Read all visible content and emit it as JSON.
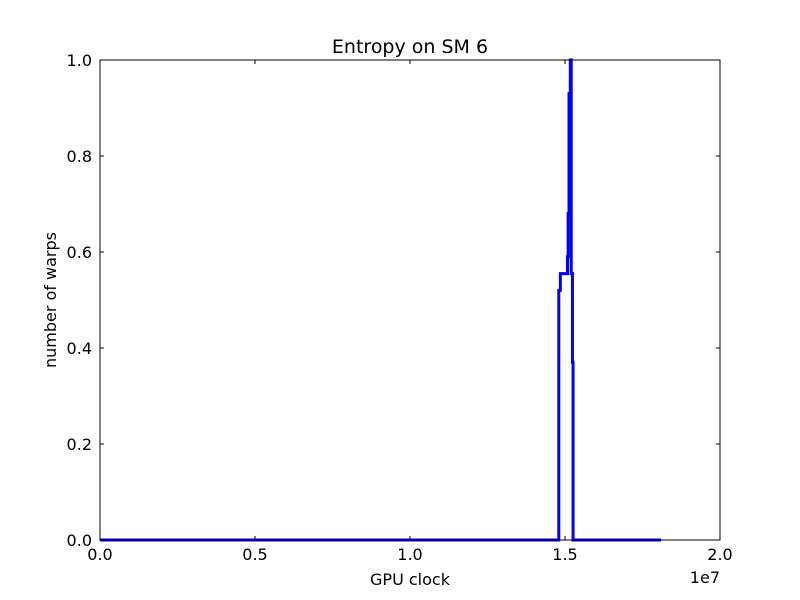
{
  "chart_data": {
    "type": "line",
    "title": "Entropy on SM 6",
    "xlabel": "GPU clock",
    "ylabel": "number of warps",
    "x_offset_label": "1e7",
    "xlim": [
      0,
      20000000
    ],
    "ylim": [
      0,
      1.0
    ],
    "x_ticks": [
      0,
      5000000,
      10000000,
      15000000,
      20000000
    ],
    "x_tick_labels": [
      "0.0",
      "0.5",
      "1.0",
      "1.5",
      "2.0"
    ],
    "y_ticks": [
      0,
      0.2,
      0.4,
      0.6,
      0.8,
      1.0
    ],
    "y_tick_labels": [
      "0.0",
      "0.2",
      "0.4",
      "0.6",
      "0.8",
      "1.0"
    ],
    "grid": false,
    "legend": "none",
    "series": [
      {
        "color": "#0000ff",
        "x": [
          0,
          14800000,
          14800000,
          14850000,
          14850000,
          15050000,
          15050000,
          15080000,
          15080000,
          15100000,
          15100000,
          15130000,
          15130000,
          15170000,
          15170000,
          15190000,
          15190000,
          15200000,
          15200000,
          15220000,
          15220000,
          15240000,
          15240000,
          15260000,
          15260000,
          18100000
        ],
        "y": [
          0,
          0,
          0.52,
          0.52,
          0.555,
          0.555,
          0.555,
          0.555,
          0.59,
          0.59,
          0.68,
          0.68,
          0.93,
          0.93,
          1.0,
          1.0,
          1.0,
          1.0,
          0.555,
          0.555,
          0.555,
          0.555,
          0.37,
          0.37,
          0,
          0
        ]
      }
    ]
  }
}
